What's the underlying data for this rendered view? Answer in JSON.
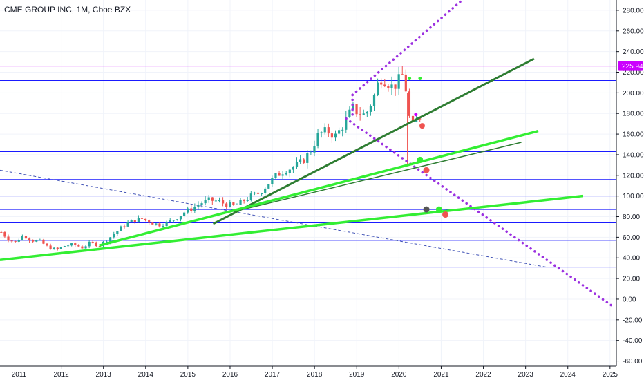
{
  "header": {
    "title": "CME GROUP INC, 1M, Cboe BZX"
  },
  "colors": {
    "up": "#26a69a",
    "down": "#ef5350",
    "hline": "#1a1aff",
    "magenta": "#cc00ff",
    "purple_dotted": "#9b30e0",
    "dark_green": "#2e7d32",
    "light_green": "#33ee33",
    "dashed_blue": "#3f51b5",
    "grid": "#f0f3fa",
    "axis": "#131722"
  },
  "price_badge": {
    "label": "225.94",
    "value": 225.94,
    "color": "#cc00ff"
  },
  "chart_data": {
    "type": "candlestick",
    "ylim": [
      -65,
      290
    ],
    "xlim": [
      2010.55,
      2025.15
    ],
    "x_ticks": [
      "2011",
      "2012",
      "2013",
      "2014",
      "2015",
      "2016",
      "2017",
      "2018",
      "2019",
      "2020",
      "2021",
      "2022",
      "2023",
      "2024",
      "2025"
    ],
    "x_tick_values": [
      2011,
      2012,
      2013,
      2014,
      2015,
      2016,
      2017,
      2018,
      2019,
      2020,
      2021,
      2022,
      2023,
      2024,
      2025
    ],
    "y_ticks": [
      "280.00",
      "260.00",
      "240.00",
      "220.00",
      "200.00",
      "180.00",
      "160.00",
      "140.00",
      "120.00",
      "100.00",
      "80.00",
      "60.00",
      "40.00",
      "20.00",
      "0.00",
      "-20.00",
      "-40.00",
      "-60.00"
    ],
    "y_tick_values": [
      280,
      260,
      240,
      220,
      200,
      180,
      160,
      140,
      120,
      100,
      80,
      60,
      40,
      20,
      0,
      -20,
      -40,
      -60
    ],
    "price_path": [
      [
        2010.58,
        65
      ],
      [
        2010.75,
        58
      ],
      [
        2010.92,
        55
      ],
      [
        2011.1,
        62
      ],
      [
        2011.3,
        57
      ],
      [
        2011.5,
        56
      ],
      [
        2011.7,
        50
      ],
      [
        2011.9,
        48
      ],
      [
        2012.1,
        52
      ],
      [
        2012.3,
        53
      ],
      [
        2012.5,
        50
      ],
      [
        2012.7,
        55
      ],
      [
        2012.9,
        52
      ],
      [
        2013.1,
        58
      ],
      [
        2013.3,
        65
      ],
      [
        2013.5,
        72
      ],
      [
        2013.7,
        76
      ],
      [
        2013.9,
        78
      ],
      [
        2014.1,
        75
      ],
      [
        2014.3,
        72
      ],
      [
        2014.5,
        74
      ],
      [
        2014.7,
        78
      ],
      [
        2014.9,
        84
      ],
      [
        2015.1,
        88
      ],
      [
        2015.3,
        93
      ],
      [
        2015.5,
        96
      ],
      [
        2015.7,
        95
      ],
      [
        2015.9,
        92
      ],
      [
        2016.1,
        90
      ],
      [
        2016.3,
        95
      ],
      [
        2016.5,
        100
      ],
      [
        2016.7,
        103
      ],
      [
        2016.9,
        112
      ],
      [
        2017.1,
        120
      ],
      [
        2017.3,
        125
      ],
      [
        2017.5,
        128
      ],
      [
        2017.7,
        133
      ],
      [
        2017.9,
        143
      ],
      [
        2018.1,
        160
      ],
      [
        2018.3,
        163
      ],
      [
        2018.5,
        158
      ],
      [
        2018.7,
        170
      ],
      [
        2018.9,
        185
      ],
      [
        2019.0,
        182
      ],
      [
        2019.2,
        178
      ],
      [
        2019.4,
        195
      ],
      [
        2019.55,
        215
      ],
      [
        2019.7,
        212
      ],
      [
        2019.85,
        205
      ],
      [
        2020.0,
        212
      ],
      [
        2020.1,
        218
      ],
      [
        2020.18,
        200
      ],
      [
        2020.25,
        175
      ],
      [
        2020.35,
        165
      ],
      [
        2020.45,
        178
      ],
      [
        2020.55,
        176
      ]
    ],
    "horizontal_lines": [
      {
        "value": 225.94,
        "color": "magenta",
        "x_start": 2010.55
      },
      {
        "value": 212,
        "color": "hline",
        "x_start": 2010.55
      },
      {
        "value": 143,
        "color": "hline",
        "x_start": 2010.55
      },
      {
        "value": 116,
        "color": "hline",
        "x_start": 2010.55
      },
      {
        "value": 100,
        "color": "hline",
        "x_start": 2010.55
      },
      {
        "value": 87,
        "color": "hline",
        "x_start": 2010.55
      },
      {
        "value": 74,
        "color": "hline",
        "x_start": 2010.55
      },
      {
        "value": 57,
        "color": "hline",
        "x_start": 2010.55
      },
      {
        "value": 31,
        "color": "hline",
        "x_start": 2010.55
      }
    ],
    "trend_lines": [
      {
        "name": "dashed-blue",
        "style": "dashed",
        "color": "dashed_blue",
        "width": 1,
        "from": [
          2010.55,
          125
        ],
        "to": [
          2023.5,
          31
        ]
      },
      {
        "name": "purple-dotted-up",
        "style": "dotted",
        "color": "purple_dotted",
        "width": 3.5,
        "from": [
          2018.9,
          198
        ],
        "to": [
          2021.5,
          290
        ]
      },
      {
        "name": "purple-dotted-down",
        "style": "dotted",
        "color": "purple_dotted",
        "width": 3.5,
        "from": [
          2018.75,
          175
        ],
        "to": [
          2025.1,
          -8
        ]
      },
      {
        "name": "purple-dotted-short",
        "style": "dotted",
        "color": "purple_dotted",
        "width": 3.5,
        "from": [
          2018.9,
          198
        ],
        "to": [
          2018.9,
          175
        ]
      },
      {
        "name": "dark-green-long",
        "style": "solid",
        "color": "dark_green",
        "width": 3,
        "from": [
          2015.6,
          73
        ],
        "to": [
          2023.2,
          233
        ]
      },
      {
        "name": "dark-green-short",
        "style": "solid",
        "color": "dark_green",
        "width": 1.5,
        "from": [
          2016.1,
          85
        ],
        "to": [
          2022.9,
          152
        ]
      },
      {
        "name": "light-green-mid",
        "style": "solid",
        "color": "light_green",
        "width": 3.5,
        "from": [
          2012.9,
          52
        ],
        "to": [
          2023.3,
          163
        ]
      },
      {
        "name": "light-green-low",
        "style": "solid",
        "color": "light_green",
        "width": 3.5,
        "from": [
          2010.55,
          38
        ],
        "to": [
          2024.35,
          100
        ]
      }
    ],
    "markers": [
      {
        "x": 2020.25,
        "y": 214,
        "color": "light_green",
        "r": 2.5
      },
      {
        "x": 2020.5,
        "y": 214,
        "color": "light_green",
        "r": 2.5
      },
      {
        "x": 2020.4,
        "y": 179,
        "color": "magenta",
        "r": 2.5
      },
      {
        "x": 2020.55,
        "y": 168,
        "color": "down",
        "r": 4
      },
      {
        "x": 2020.5,
        "y": 135,
        "color": "light_green",
        "r": 4.5
      },
      {
        "x": 2020.65,
        "y": 125,
        "color": "down",
        "r": 4.5
      },
      {
        "x": 2020.65,
        "y": 87,
        "color": "#555555",
        "r": 4.5
      },
      {
        "x": 2020.95,
        "y": 87,
        "color": "light_green",
        "r": 4.5
      },
      {
        "x": 2021.1,
        "y": 82,
        "color": "down",
        "r": 4.5
      }
    ]
  }
}
